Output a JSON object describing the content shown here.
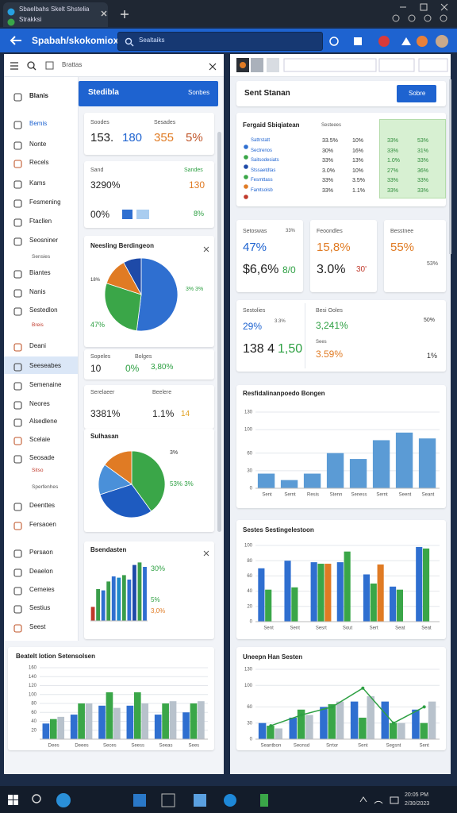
{
  "browser": {
    "tab": "Sbaelbahs Skelt Shstelia",
    "tab2": "Strakksi"
  },
  "app": {
    "title": "Spabah/skokomiox",
    "search": "Sealtaiks"
  },
  "sidebar": {
    "search": "Brattas",
    "selected": 14,
    "items": [
      "Blanis",
      "Bemis",
      "Nonte",
      "Recels",
      "Kams",
      "Fesmening",
      "Ftacllen",
      "Seosniner",
      "Sensies",
      "Biantes",
      "Nanis",
      "Sestedlon",
      "Breis",
      "Deani",
      "Seeseabes",
      "Semenaine",
      "Neores",
      "Alsedlene",
      "Scelaie",
      "Seosade",
      "Sitso",
      "Sperfenhes",
      "Deenttes",
      "Fersaoen",
      "Persaon",
      "Deaelon",
      "Cemeies",
      "Sestius",
      "Seest"
    ]
  },
  "left": {
    "header": {
      "title": "Stedibla",
      "action": "Sonbes"
    },
    "card1": {
      "texts": [
        "Soodes",
        "Sesades",
        "153.",
        "180",
        "355",
        "5%"
      ]
    },
    "card2": {
      "texts": [
        "Sand",
        "Sandes",
        "3290%",
        "130",
        "00%",
        "8%"
      ]
    },
    "pie1": {
      "type": "pie",
      "title": "Neesling Berdingeon",
      "values": [
        52,
        28,
        12,
        8
      ],
      "colors": [
        "#2f6fd0",
        "#3aa648",
        "#e07b24",
        "#1e4aa8"
      ],
      "annotations": [
        "18%",
        "3% 3%",
        "47%"
      ]
    },
    "card4": {
      "texts": [
        "Sopeles",
        "Bolges",
        "10",
        "0%",
        "3,80%"
      ]
    },
    "card5": {
      "texts": [
        "Serelaeer",
        "Beelere",
        "3381%",
        "1.1%",
        "14"
      ]
    },
    "pie2": {
      "type": "pie",
      "title": "Sulhasan",
      "values": [
        40,
        30,
        15,
        15
      ],
      "colors": [
        "#3aa648",
        "#1e5bc0",
        "#4a90d9",
        "#e07b24"
      ],
      "annotations": [
        "3%",
        "53% 3%"
      ]
    },
    "bars": {
      "type": "bar",
      "title": "Bsendasten",
      "series": [
        {
          "colors": [
            "#c0392b",
            "#3a9d4a",
            "#2f6fd0",
            "#3a9d4a",
            "#2f6fd0",
            "#1e88c8",
            "#3a9d4a",
            "#2f6fd0",
            "#1e4aa8",
            "#3a9d4a",
            "#2f6fd0"
          ],
          "values": [
            22,
            50,
            48,
            62,
            70,
            68,
            72,
            65,
            88,
            92,
            85
          ]
        }
      ],
      "ylim": [
        0,
        100
      ],
      "annotations": [
        "30%",
        "5%",
        "3,0%"
      ]
    },
    "combo": {
      "type": "bar",
      "title": "Beatelt lotion Setensolsen",
      "categories": [
        "Dees",
        "Deees",
        "Seces",
        "Seess",
        "Seeas",
        "Sees"
      ],
      "series": [
        {
          "color": "#2f6fd0",
          "values": [
            35,
            55,
            75,
            75,
            55,
            60
          ]
        },
        {
          "color": "#3aa648",
          "values": [
            45,
            80,
            105,
            105,
            80,
            80
          ]
        },
        {
          "color": "#b8c2cc",
          "values": [
            50,
            80,
            70,
            80,
            85,
            85
          ]
        }
      ],
      "ylim": [
        0,
        160
      ],
      "yticks": [
        20,
        40,
        60,
        80,
        100,
        120,
        140,
        160
      ]
    }
  },
  "right": {
    "header": {
      "title": "Sent Stanan",
      "action": "Sobre"
    },
    "table": {
      "title": "Fergaid Sbiqiatean",
      "header": "Sesteees",
      "dot_colors": [
        "#2f6fd0",
        "#3aa648",
        "#1e4aa8",
        "#3aa648",
        "#e07b24",
        "#c0392b"
      ],
      "rows": [
        [
          "Sattrstatt",
          "33.5%",
          "10%",
          "33%",
          "53%"
        ],
        [
          "Sectrenos",
          "30%",
          "16%",
          "33%",
          "31%"
        ],
        [
          "Saitsodesiats",
          "33%",
          "13%",
          "1.0%",
          "33%"
        ],
        [
          "Stssaetdtas",
          "3.0%",
          "10%",
          "27%",
          "36%"
        ],
        [
          "Fesmttass",
          "33%",
          "3.5%",
          "33%",
          "33%"
        ],
        [
          "Famtsolsb",
          "33%",
          "1.1%",
          "33%",
          "33%"
        ]
      ]
    },
    "kpi1": {
      "texts": [
        "Setoswas",
        "33%",
        "47%",
        "$6,6%",
        "8/0"
      ]
    },
    "kpi2": {
      "texts": [
        "Feoondles",
        "15,8%",
        "3.0%",
        "30'"
      ]
    },
    "kpi3": {
      "texts": [
        "Besstnee",
        "55%",
        "53%"
      ]
    },
    "kpi4": {
      "texts": [
        "Sestolies",
        "3.3%",
        "29%",
        "138 4",
        "1,50",
        "Besi Ooles",
        "3,241%",
        "Sees",
        "3.59%",
        "50%",
        "1%"
      ]
    },
    "bars": {
      "type": "bar",
      "title": "Resfidalinanpoedo Bongen",
      "categories": [
        "Sent",
        "Sernt",
        "Resis",
        "Stenn",
        "Seness",
        "Sernt",
        "Seent",
        "Seant"
      ],
      "series": [
        {
          "color": "#5b9bd5",
          "values": [
            25,
            14,
            25,
            60,
            50,
            82,
            95,
            85
          ]
        }
      ],
      "ylim": [
        0,
        130
      ],
      "yticks": [
        0,
        30,
        60,
        100,
        130
      ]
    },
    "grouped": {
      "type": "bar",
      "title": "Sestes Sestingelestoon",
      "categories": [
        "Sent",
        "Sent",
        "Sesrt",
        "Sout",
        "Sert",
        "Seat",
        "Seat"
      ],
      "series": [
        {
          "color": "#2f6fd0",
          "values": [
            70,
            80,
            78,
            78,
            62,
            46,
            98
          ]
        },
        {
          "color": "#3aa648",
          "values": [
            42,
            45,
            76,
            92,
            50,
            42,
            96
          ]
        },
        {
          "color": "#e07b24",
          "values": [
            null,
            null,
            76,
            null,
            75,
            null,
            null
          ]
        }
      ],
      "ylim": [
        0,
        100
      ],
      "yticks": [
        0,
        20,
        40,
        60,
        80,
        100
      ]
    },
    "combo": {
      "type": "bar",
      "title": "Uneepn Han Sesten",
      "categories": [
        "Seantbon",
        "Seonsd",
        "Srrtor",
        "Sent",
        "Segsnt",
        "Sent"
      ],
      "series": [
        {
          "color": "#2f6fd0",
          "values": [
            30,
            40,
            60,
            70,
            70,
            55
          ]
        },
        {
          "color": "#3aa648",
          "values": [
            25,
            55,
            65,
            40,
            30,
            30
          ]
        },
        {
          "color": "#b8c2cc",
          "values": [
            20,
            45,
            70,
            80,
            30,
            70
          ]
        },
        {
          "kind": "line",
          "color": "#2ea043",
          "values": [
            25,
            45,
            60,
            95,
            30,
            60
          ]
        }
      ],
      "ylim": [
        0,
        130
      ],
      "yticks": [
        0,
        30,
        60,
        100,
        130
      ]
    }
  },
  "taskbar": {
    "time": "20:05 PM",
    "date": "2/30/2023"
  }
}
